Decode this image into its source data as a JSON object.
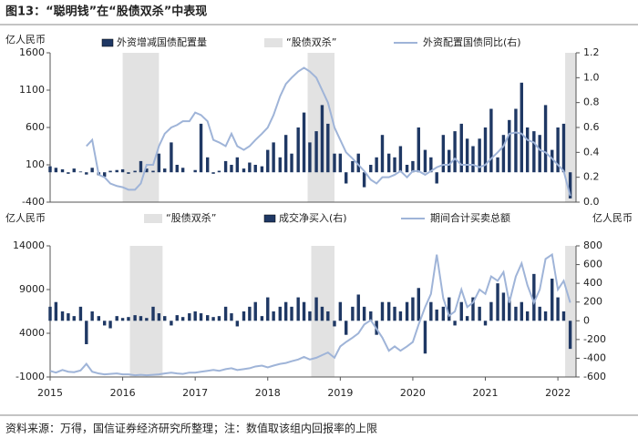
{
  "title": "图13：“聪明钱”在“股债双杀”中表现",
  "source": "资料来源：万得，国信证券经济研究所整理；注：数值取该组内回报率的上限",
  "chart_data": [
    {
      "type": "bar_line",
      "y_unit": "亿人民币",
      "x": [
        2015.0,
        2015.08,
        2015.17,
        2015.25,
        2015.33,
        2015.42,
        2015.5,
        2015.58,
        2015.67,
        2015.75,
        2015.83,
        2015.92,
        2016.0,
        2016.08,
        2016.17,
        2016.25,
        2016.33,
        2016.42,
        2016.5,
        2016.58,
        2016.67,
        2016.75,
        2016.83,
        2016.92,
        2017.0,
        2017.08,
        2017.17,
        2017.25,
        2017.33,
        2017.42,
        2017.5,
        2017.58,
        2017.67,
        2017.75,
        2017.83,
        2017.92,
        2018.0,
        2018.08,
        2018.17,
        2018.25,
        2018.33,
        2018.42,
        2018.5,
        2018.58,
        2018.67,
        2018.75,
        2018.83,
        2018.92,
        2019.0,
        2019.08,
        2019.17,
        2019.25,
        2019.33,
        2019.42,
        2019.5,
        2019.58,
        2019.67,
        2019.75,
        2019.83,
        2019.92,
        2020.0,
        2020.08,
        2020.17,
        2020.25,
        2020.33,
        2020.42,
        2020.5,
        2020.58,
        2020.67,
        2020.75,
        2020.83,
        2020.92,
        2021.0,
        2021.08,
        2021.17,
        2021.25,
        2021.33,
        2021.42,
        2021.5,
        2021.58,
        2021.67,
        2021.75,
        2021.83,
        2021.92,
        2022.0,
        2022.08,
        2022.17
      ],
      "xlim": [
        2015,
        2022.25
      ],
      "ylim": [
        -400,
        1600
      ],
      "yticks": [
        -400,
        100,
        600,
        1100,
        1600
      ],
      "y2lim": [
        0,
        1.2
      ],
      "y2ticks": [
        {
          "value": 0,
          "label": "0.0"
        },
        0.2,
        0.4,
        0.6,
        0.8,
        {
          "value": 1,
          "label": "1.0"
        },
        1.2
      ],
      "series": [
        {
          "name": "外资增减国债配置量",
          "kind": "bar",
          "color": "#1f3864",
          "values": [
            80,
            60,
            40,
            -20,
            50,
            10,
            -30,
            60,
            -40,
            -60,
            20,
            30,
            40,
            -20,
            20,
            150,
            50,
            20,
            250,
            50,
            400,
            100,
            60,
            0,
            30,
            650,
            200,
            -20,
            20,
            150,
            100,
            200,
            50,
            130,
            100,
            80,
            300,
            400,
            200,
            500,
            250,
            600,
            800,
            400,
            550,
            900,
            650,
            250,
            250,
            -150,
            150,
            250,
            -200,
            100,
            200,
            500,
            250,
            200,
            350,
            100,
            150,
            600,
            300,
            200,
            -150,
            500,
            300,
            550,
            650,
            450,
            350,
            450,
            600,
            850,
            200,
            500,
            700,
            850,
            1200,
            600,
            550,
            500,
            900,
            300,
            600,
            650,
            -350
          ]
        },
        {
          "name": "“股债双杀”",
          "kind": "shade",
          "color": "#e2e2e2",
          "ranges": [
            [
              2016.0,
              2016.5
            ],
            [
              2018.55,
              2018.92
            ],
            [
              2022.1,
              2022.25
            ]
          ]
        },
        {
          "name": "外资配置国债同比(右)",
          "kind": "line",
          "axis": "y2",
          "color": "#9fb4d8",
          "values": [
            null,
            null,
            null,
            null,
            null,
            null,
            0.45,
            0.5,
            0.22,
            0.2,
            0.15,
            0.13,
            0.12,
            0.1,
            0.1,
            0.15,
            0.3,
            0.3,
            0.45,
            0.55,
            0.6,
            0.62,
            0.65,
            0.65,
            0.72,
            0.7,
            0.65,
            0.5,
            0.48,
            0.45,
            0.55,
            0.45,
            0.42,
            0.45,
            0.5,
            0.55,
            0.6,
            0.7,
            0.85,
            0.95,
            1.0,
            1.05,
            1.08,
            1.05,
            1.0,
            0.9,
            0.8,
            0.6,
            0.5,
            0.4,
            0.35,
            0.3,
            0.25,
            0.18,
            0.15,
            0.2,
            0.2,
            0.22,
            0.25,
            0.2,
            0.25,
            0.25,
            0.22,
            0.25,
            0.28,
            0.3,
            0.3,
            0.35,
            0.3,
            0.3,
            0.3,
            0.28,
            0.3,
            0.35,
            0.4,
            0.45,
            0.55,
            0.56,
            0.55,
            0.5,
            0.48,
            0.42,
            0.4,
            0.35,
            0.3,
            0.25,
            0.05
          ]
        }
      ]
    },
    {
      "type": "bar_line",
      "y_unit": "亿人民币",
      "y2_unit": "亿人民币",
      "x": [
        2015.0,
        2015.08,
        2015.17,
        2015.25,
        2015.33,
        2015.42,
        2015.5,
        2015.58,
        2015.67,
        2015.75,
        2015.83,
        2015.92,
        2016.0,
        2016.08,
        2016.17,
        2016.25,
        2016.33,
        2016.42,
        2016.5,
        2016.58,
        2016.67,
        2016.75,
        2016.83,
        2016.92,
        2017.0,
        2017.08,
        2017.17,
        2017.25,
        2017.33,
        2017.42,
        2017.5,
        2017.58,
        2017.67,
        2017.75,
        2017.83,
        2017.92,
        2018.0,
        2018.08,
        2018.17,
        2018.25,
        2018.33,
        2018.42,
        2018.5,
        2018.58,
        2018.67,
        2018.75,
        2018.83,
        2018.92,
        2019.0,
        2019.08,
        2019.17,
        2019.25,
        2019.33,
        2019.42,
        2019.5,
        2019.58,
        2019.67,
        2019.75,
        2019.83,
        2019.92,
        2020.0,
        2020.08,
        2020.17,
        2020.25,
        2020.33,
        2020.42,
        2020.5,
        2020.58,
        2020.67,
        2020.75,
        2020.83,
        2020.92,
        2021.0,
        2021.08,
        2021.17,
        2021.25,
        2021.33,
        2021.42,
        2021.5,
        2021.58,
        2021.67,
        2021.75,
        2021.83,
        2021.92,
        2022.0,
        2022.08,
        2022.17
      ],
      "xlim": [
        2015,
        2022.25
      ],
      "xticks": [
        2015,
        2016,
        2017,
        2018,
        2019,
        2020,
        2021,
        2022
      ],
      "ylim": [
        -1000,
        14000
      ],
      "yticks": [
        -1000,
        4000,
        9000,
        14000
      ],
      "y2lim": [
        -600,
        800
      ],
      "y2ticks": [
        -600,
        -400,
        -200,
        0,
        200,
        400,
        600,
        800
      ],
      "series": [
        {
          "name": "“股债双杀”",
          "kind": "shade",
          "color": "#e2e2e2",
          "ranges": [
            [
              2016.1,
              2016.55
            ],
            [
              2018.6,
              2018.92
            ],
            [
              2022.1,
              2022.25
            ]
          ]
        },
        {
          "name": "成交净买入(右)",
          "kind": "bar",
          "axis": "y2",
          "color": "#1f3864",
          "values": [
            150,
            200,
            100,
            80,
            50,
            150,
            -250,
            100,
            50,
            -50,
            -80,
            50,
            30,
            40,
            60,
            50,
            30,
            150,
            80,
            50,
            -50,
            60,
            40,
            80,
            100,
            80,
            60,
            40,
            50,
            150,
            80,
            -60,
            100,
            150,
            200,
            50,
            250,
            100,
            150,
            200,
            150,
            250,
            200,
            100,
            250,
            150,
            100,
            -60,
            200,
            -150,
            150,
            280,
            150,
            100,
            -150,
            200,
            200,
            150,
            100,
            200,
            250,
            350,
            -350,
            200,
            120,
            150,
            250,
            -50,
            200,
            50,
            250,
            150,
            -50,
            200,
            400,
            300,
            250,
            150,
            200,
            100,
            500,
            150,
            100,
            450,
            250,
            100,
            -300
          ]
        },
        {
          "name": "期间合计买卖总额",
          "kind": "line",
          "color": "#9fb4d8",
          "values": [
            -300,
            -500,
            -200,
            -400,
            -450,
            -250,
            500,
            -400,
            -600,
            -700,
            -650,
            -600,
            -700,
            -700,
            -800,
            -750,
            -800,
            -750,
            -700,
            -600,
            -500,
            -600,
            -650,
            -500,
            -500,
            -400,
            -300,
            -200,
            -300,
            -100,
            0,
            -200,
            -100,
            0,
            200,
            300,
            100,
            300,
            500,
            600,
            800,
            1000,
            1300,
            1000,
            1200,
            1500,
            1800,
            1200,
            2500,
            3000,
            3500,
            4000,
            5000,
            5500,
            4500,
            3500,
            2000,
            2500,
            2000,
            2500,
            3000,
            5000,
            7000,
            8500,
            13000,
            8000,
            6000,
            6500,
            9000,
            7000,
            7500,
            9000,
            8500,
            10500,
            10000,
            11000,
            7500,
            10500,
            12000,
            9500,
            7500,
            9000,
            12500,
            13000,
            9000,
            10000,
            7500
          ]
        }
      ]
    }
  ]
}
